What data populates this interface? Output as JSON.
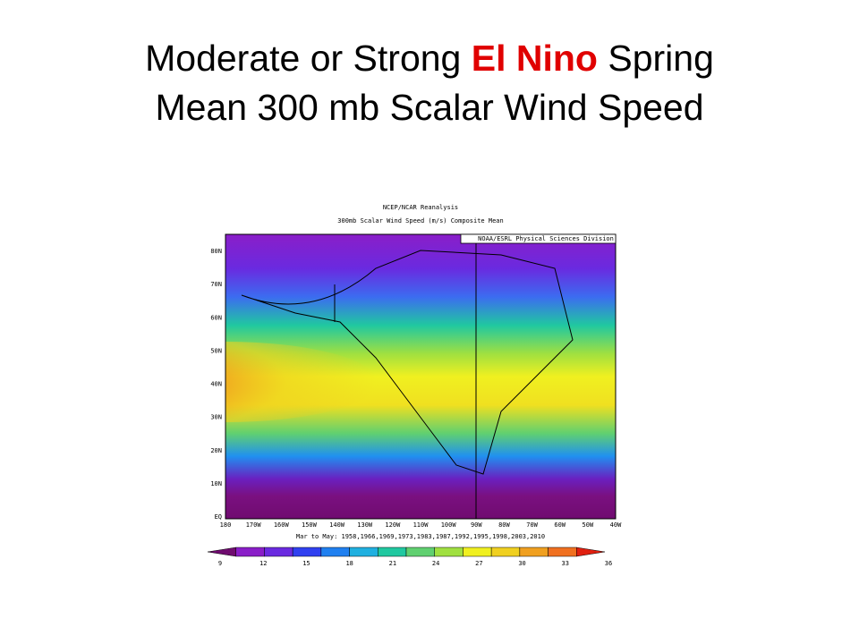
{
  "slide": {
    "title_parts": [
      "Moderate or Strong ",
      "El Nino",
      " Spring"
    ],
    "title_line2": "Mean 300  mb Scalar Wind Speed"
  },
  "map": {
    "header": [
      "NCEP/NCAR Reanalysis",
      "300mb Scalar Wind Speed (m/s) Composite Mean"
    ],
    "credit": "NOAA/ESRL Physical Sciences Division",
    "lat_labels": [
      "80N",
      "70N",
      "60N",
      "50N",
      "40N",
      "30N",
      "20N",
      "10N",
      "EQ"
    ],
    "lon_labels": [
      "180",
      "170W",
      "160W",
      "150W",
      "140W",
      "130W",
      "120W",
      "110W",
      "100W",
      "90W",
      "80W",
      "70W",
      "60W",
      "50W",
      "40W"
    ],
    "caption": "Mar to May: 1958,1966,1969,1973,1983,1987,1992,1995,1998,2003,2010",
    "colorbar_labels": [
      "9",
      "12",
      "15",
      "18",
      "21",
      "24",
      "27",
      "30",
      "33",
      "36"
    ]
  }
}
